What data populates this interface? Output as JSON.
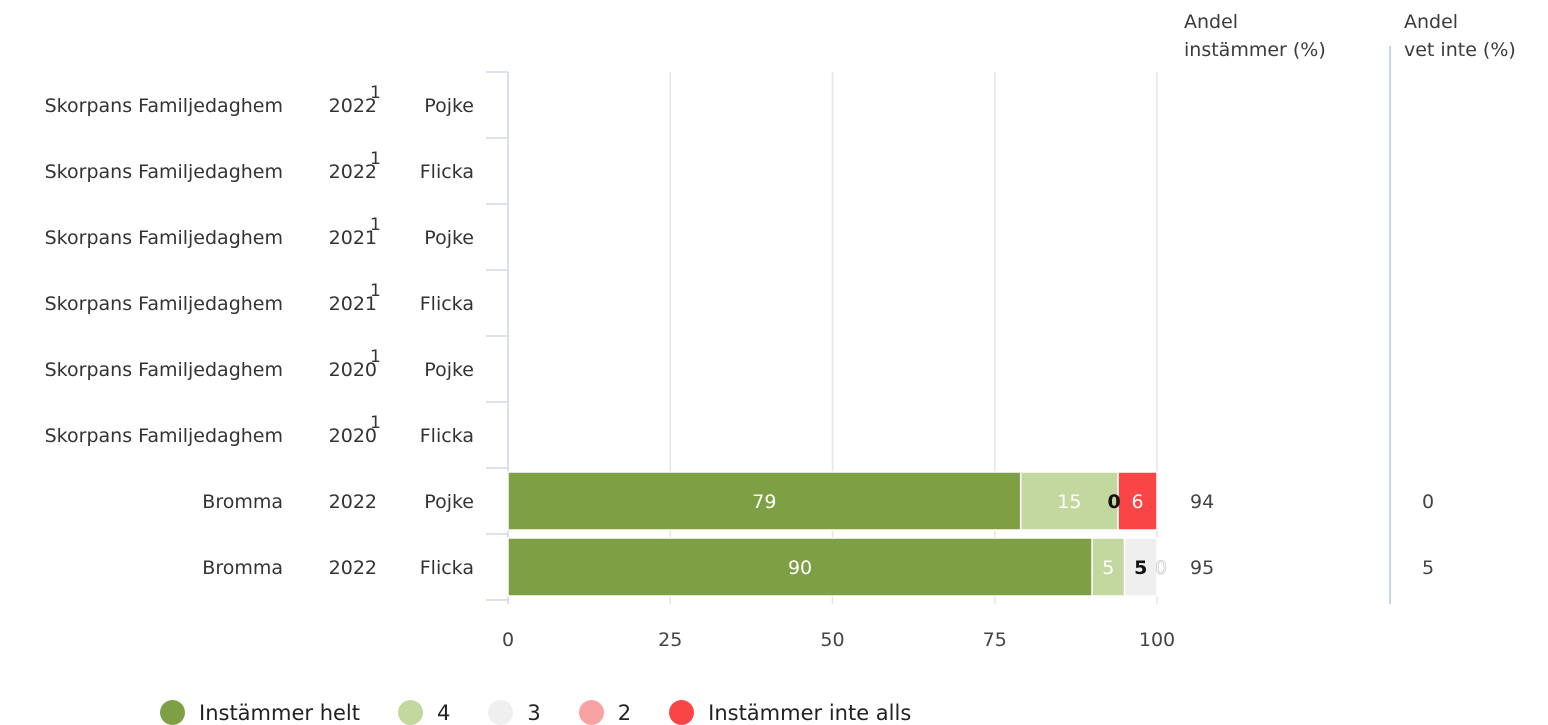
{
  "headers": {
    "share_agree": [
      "Andel",
      "instämmer (%)"
    ],
    "share_dont_know": [
      "Andel",
      "vet inte (%)"
    ]
  },
  "chart_data": {
    "type": "bar",
    "orientation": "horizontal",
    "stacked": true,
    "xlim": [
      0,
      100
    ],
    "xticks": [
      0,
      25,
      50,
      75,
      100
    ],
    "grid": true,
    "legend_position": "bottom",
    "rows": [
      {
        "unit": "Skorpans Familjedaghem",
        "year": "2022",
        "note": "1",
        "gender": "Pojke",
        "values": null,
        "share_agree": "",
        "share_dont_know": ""
      },
      {
        "unit": "Skorpans Familjedaghem",
        "year": "2022",
        "note": "1",
        "gender": "Flicka",
        "values": null,
        "share_agree": "",
        "share_dont_know": ""
      },
      {
        "unit": "Skorpans Familjedaghem",
        "year": "2021",
        "note": "1",
        "gender": "Pojke",
        "values": null,
        "share_agree": "",
        "share_dont_know": ""
      },
      {
        "unit": "Skorpans Familjedaghem",
        "year": "2021",
        "note": "1",
        "gender": "Flicka",
        "values": null,
        "share_agree": "",
        "share_dont_know": ""
      },
      {
        "unit": "Skorpans Familjedaghem",
        "year": "2020",
        "note": "1",
        "gender": "Pojke",
        "values": null,
        "share_agree": "",
        "share_dont_know": ""
      },
      {
        "unit": "Skorpans Familjedaghem",
        "year": "2020",
        "note": "1",
        "gender": "Flicka",
        "values": null,
        "share_agree": "",
        "share_dont_know": ""
      },
      {
        "unit": "Bromma",
        "year": "2022",
        "note": "",
        "gender": "Pojke",
        "values": [
          79,
          15,
          0,
          0,
          6
        ],
        "share_agree": "94",
        "share_dont_know": "0"
      },
      {
        "unit": "Bromma",
        "year": "2022",
        "note": "",
        "gender": "Flicka",
        "values": [
          90,
          5,
          5,
          0,
          0
        ],
        "share_agree": "95",
        "share_dont_know": "5"
      }
    ],
    "segment_labels": [
      [],
      [],
      [],
      [],
      [],
      [],
      [
        {
          "series": 0,
          "text": "79"
        },
        {
          "series": 1,
          "text": "15"
        },
        {
          "series": 2,
          "text": "0"
        },
        {
          "series": 4,
          "text": "6"
        }
      ],
      [
        {
          "series": 0,
          "text": "90"
        },
        {
          "series": 1,
          "text": "5"
        },
        {
          "series": 2,
          "text": "5"
        },
        {
          "series": 3,
          "text": "0"
        }
      ]
    ],
    "series": [
      {
        "name": "Instämmer helt",
        "color": "#7f9f45"
      },
      {
        "name": "4",
        "color": "#c3d89e"
      },
      {
        "name": "3",
        "color": "#efefef"
      },
      {
        "name": "2",
        "color": "#f7a3a3"
      },
      {
        "name": "Instämmer inte alls",
        "color": "#f94545"
      }
    ]
  }
}
